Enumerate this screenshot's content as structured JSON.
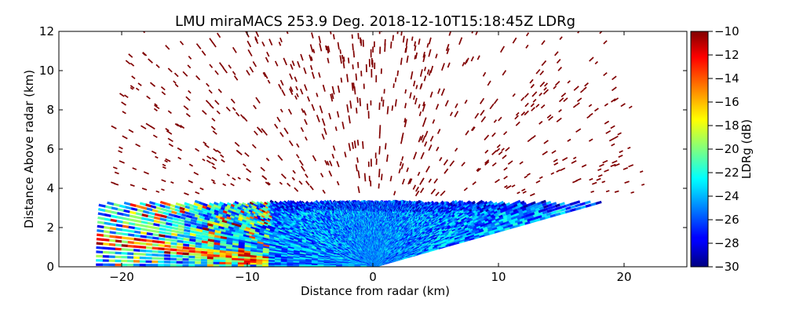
{
  "chart_data": {
    "type": "heatmap",
    "title": "LMU miraMACS 253.9 Deg. 2018-12-10T15:18:45Z  LDRg",
    "xlabel": "Distance from radar (km)",
    "ylabel": "Distance Above radar  (km)",
    "xlim": [
      -25,
      25
    ],
    "ylim": [
      0,
      12
    ],
    "xticks": [
      -20,
      -10,
      0,
      10,
      20
    ],
    "xtick_labels": [
      "−20",
      "−10",
      "0",
      "10",
      "20"
    ],
    "yticks": [
      0,
      2,
      4,
      6,
      8,
      10,
      12
    ],
    "ytick_labels": [
      "0",
      "2",
      "4",
      "6",
      "8",
      "10",
      "12"
    ],
    "colorbar": {
      "label": "LDRg (dB)",
      "range": [
        -30,
        -10
      ],
      "colormap": "jet",
      "ticks": [
        -10,
        -12,
        -14,
        -16,
        -18,
        -20,
        -22,
        -24,
        -26,
        -28,
        -30
      ],
      "tick_labels": [
        "−10",
        "−12",
        "−14",
        "−16",
        "−18",
        "−20",
        "−22",
        "−24",
        "−26",
        "−28",
        "−30"
      ]
    },
    "scan": {
      "azimuth_deg": 253.9,
      "max_range_km": 22,
      "min_elevation_deg": 10,
      "melting_layer_top_km": 3.2,
      "sparse_ldr_value_db": -10
    }
  }
}
